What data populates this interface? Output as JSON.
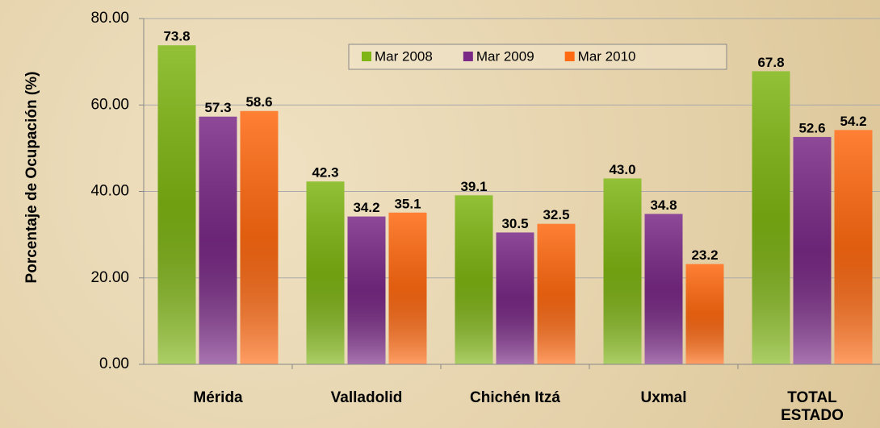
{
  "chart_data": {
    "type": "bar",
    "y_label": "Porcentaje de Ocupación (%)",
    "categories": [
      "Mérida",
      "Valladolid",
      "Chichén Itzá",
      "Uxmal",
      "TOTAL ESTADO"
    ],
    "series": [
      {
        "name": "Mar 2008",
        "color": "#7fb514",
        "values": [
          73.8,
          42.3,
          39.1,
          43.0,
          67.8
        ],
        "value_labels": [
          "73.8",
          "42.3",
          "39.1",
          "43.0",
          "67.8"
        ]
      },
      {
        "name": "Mar 2009",
        "color": "#7a2a86",
        "values": [
          57.3,
          34.2,
          30.5,
          34.8,
          52.6
        ],
        "value_labels": [
          "57.3",
          "34.2",
          "30.5",
          "34.8",
          "52.6"
        ]
      },
      {
        "name": "Mar 2010",
        "color": "#ff6a12",
        "values": [
          58.6,
          35.1,
          32.5,
          23.2,
          54.2
        ],
        "value_labels": [
          "58.6",
          "35.1",
          "32.5",
          "23.2",
          "54.2"
        ]
      }
    ],
    "ylim": [
      0,
      80
    ],
    "yticks": [
      {
        "value": 0,
        "label": "0.00"
      },
      {
        "value": 20,
        "label": "20.00"
      },
      {
        "value": 40,
        "label": "40.00"
      },
      {
        "value": 60,
        "label": "60.00"
      },
      {
        "value": 80,
        "label": "80.00"
      }
    ],
    "grid": true,
    "legend": "top"
  }
}
